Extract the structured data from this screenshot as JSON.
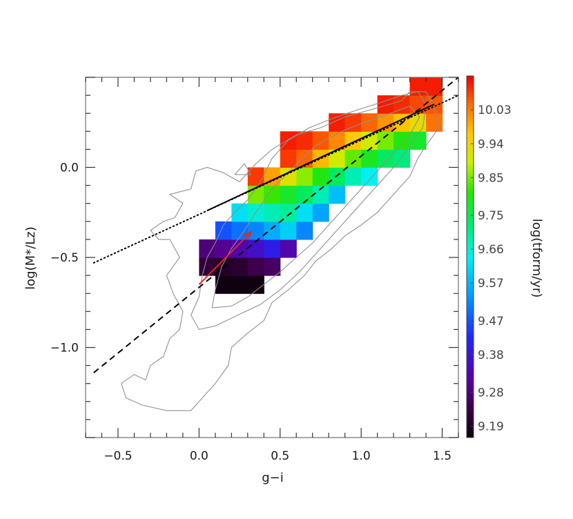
{
  "chart_data": {
    "type": "heatmap",
    "xlabel": "g−i",
    "ylabel": "log(M*/Lz)",
    "colorbar_label": "log(tform/yr)",
    "xlim": [
      -0.7,
      1.6
    ],
    "ylim": [
      -1.5,
      0.5
    ],
    "x_ticks": [
      {
        "value": -0.5,
        "label": "−0.5"
      },
      {
        "value": 0.0,
        "label": "0.0"
      },
      {
        "value": 0.5,
        "label": "0.5"
      },
      {
        "value": 1.0,
        "label": "1.0"
      },
      {
        "value": 1.5,
        "label": "1.5"
      }
    ],
    "y_ticks": [
      {
        "value": 0.0,
        "label": "0.0"
      },
      {
        "value": -0.5,
        "label": "−0.5"
      },
      {
        "value": -1.0,
        "label": "−1.0"
      }
    ],
    "colorbar": {
      "min": 9.16,
      "max": 10.12,
      "tick_values": [
        10.03,
        9.94,
        9.85,
        9.75,
        9.66,
        9.57,
        9.47,
        9.38,
        9.28,
        9.19
      ],
      "tick_labels": [
        "10.03",
        "9.94",
        "9.85",
        "9.75",
        "9.66",
        "9.57",
        "9.47",
        "9.38",
        "9.28",
        "9.19"
      ]
    },
    "grid": false,
    "legend": "none",
    "bin_size": {
      "x": 0.1,
      "y": 0.1
    },
    "bins": [
      {
        "x": 0.1,
        "y": -0.7,
        "v": 9.17
      },
      {
        "x": 0.2,
        "y": -0.7,
        "v": 9.17
      },
      {
        "x": 0.3,
        "y": -0.7,
        "v": 9.17
      },
      {
        "x": 0.0,
        "y": -0.6,
        "v": 9.22
      },
      {
        "x": 0.1,
        "y": -0.6,
        "v": 9.2
      },
      {
        "x": 0.2,
        "y": -0.6,
        "v": 9.21
      },
      {
        "x": 0.3,
        "y": -0.6,
        "v": 9.24
      },
      {
        "x": 0.4,
        "y": -0.6,
        "v": 9.26
      },
      {
        "x": 0.0,
        "y": -0.5,
        "v": 9.28
      },
      {
        "x": 0.1,
        "y": -0.5,
        "v": 9.3
      },
      {
        "x": 0.2,
        "y": -0.5,
        "v": 9.33
      },
      {
        "x": 0.3,
        "y": -0.5,
        "v": 9.36
      },
      {
        "x": 0.4,
        "y": -0.5,
        "v": 9.4
      },
      {
        "x": 0.5,
        "y": -0.5,
        "v": 9.33
      },
      {
        "x": 0.1,
        "y": -0.4,
        "v": 9.47
      },
      {
        "x": 0.2,
        "y": -0.4,
        "v": 9.5
      },
      {
        "x": 0.3,
        "y": -0.4,
        "v": 9.52
      },
      {
        "x": 0.4,
        "y": -0.4,
        "v": 9.56
      },
      {
        "x": 0.5,
        "y": -0.4,
        "v": 9.6
      },
      {
        "x": 0.6,
        "y": -0.4,
        "v": 9.52
      },
      {
        "x": 0.2,
        "y": -0.3,
        "v": 9.62
      },
      {
        "x": 0.3,
        "y": -0.3,
        "v": 9.66
      },
      {
        "x": 0.4,
        "y": -0.3,
        "v": 9.68
      },
      {
        "x": 0.5,
        "y": -0.3,
        "v": 9.7
      },
      {
        "x": 0.6,
        "y": -0.3,
        "v": 9.62
      },
      {
        "x": 0.7,
        "y": -0.3,
        "v": 9.55
      },
      {
        "x": 0.3,
        "y": -0.2,
        "v": 9.85
      },
      {
        "x": 0.4,
        "y": -0.2,
        "v": 9.82
      },
      {
        "x": 0.5,
        "y": -0.2,
        "v": 9.78
      },
      {
        "x": 0.6,
        "y": -0.2,
        "v": 9.74
      },
      {
        "x": 0.7,
        "y": -0.2,
        "v": 9.68
      },
      {
        "x": 0.8,
        "y": -0.2,
        "v": 9.58
      },
      {
        "x": 0.3,
        "y": -0.1,
        "v": 10.08
      },
      {
        "x": 0.4,
        "y": -0.1,
        "v": 10.0
      },
      {
        "x": 0.5,
        "y": -0.1,
        "v": 9.92
      },
      {
        "x": 0.6,
        "y": -0.1,
        "v": 9.86
      },
      {
        "x": 0.7,
        "y": -0.1,
        "v": 9.8
      },
      {
        "x": 0.8,
        "y": -0.1,
        "v": 9.74
      },
      {
        "x": 0.9,
        "y": -0.1,
        "v": 9.68
      },
      {
        "x": 1.0,
        "y": -0.1,
        "v": 9.64
      },
      {
        "x": 0.5,
        "y": 0.0,
        "v": 10.08
      },
      {
        "x": 0.6,
        "y": 0.0,
        "v": 10.05
      },
      {
        "x": 0.7,
        "y": 0.0,
        "v": 9.98
      },
      {
        "x": 0.8,
        "y": 0.0,
        "v": 9.9
      },
      {
        "x": 0.9,
        "y": 0.0,
        "v": 9.84
      },
      {
        "x": 1.0,
        "y": 0.0,
        "v": 9.79
      },
      {
        "x": 1.1,
        "y": 0.0,
        "v": 9.74
      },
      {
        "x": 1.2,
        "y": 0.0,
        "v": 9.72
      },
      {
        "x": 0.5,
        "y": 0.1,
        "v": 10.1
      },
      {
        "x": 0.6,
        "y": 0.1,
        "v": 10.09
      },
      {
        "x": 0.7,
        "y": 0.1,
        "v": 10.06
      },
      {
        "x": 0.8,
        "y": 0.1,
        "v": 10.02
      },
      {
        "x": 0.9,
        "y": 0.1,
        "v": 9.96
      },
      {
        "x": 1.0,
        "y": 0.1,
        "v": 9.9
      },
      {
        "x": 1.1,
        "y": 0.1,
        "v": 9.85
      },
      {
        "x": 1.2,
        "y": 0.1,
        "v": 9.8
      },
      {
        "x": 1.3,
        "y": 0.1,
        "v": 9.78
      },
      {
        "x": 0.8,
        "y": 0.2,
        "v": 10.1
      },
      {
        "x": 0.9,
        "y": 0.2,
        "v": 10.08
      },
      {
        "x": 1.0,
        "y": 0.2,
        "v": 10.05
      },
      {
        "x": 1.1,
        "y": 0.2,
        "v": 10.01
      },
      {
        "x": 1.2,
        "y": 0.2,
        "v": 9.97
      },
      {
        "x": 1.3,
        "y": 0.2,
        "v": 9.93
      },
      {
        "x": 1.4,
        "y": 0.2,
        "v": 10.04
      },
      {
        "x": 1.1,
        "y": 0.3,
        "v": 10.1
      },
      {
        "x": 1.2,
        "y": 0.3,
        "v": 10.09
      },
      {
        "x": 1.3,
        "y": 0.3,
        "v": 10.07
      },
      {
        "x": 1.4,
        "y": 0.3,
        "v": 10.06
      },
      {
        "x": 1.3,
        "y": 0.4,
        "v": 10.1
      },
      {
        "x": 1.4,
        "y": 0.4,
        "v": 10.1
      }
    ],
    "lines": [
      {
        "style": "solid",
        "color": "#000000",
        "x": [
          0.05,
          1.45
        ],
        "y": [
          -0.24,
          0.35
        ]
      },
      {
        "style": "dotted",
        "color": "#000000",
        "x": [
          -0.65,
          1.6
        ],
        "y": [
          -0.53,
          0.4
        ]
      },
      {
        "style": "dashed",
        "color": "#000000",
        "x": [
          -0.65,
          1.6
        ],
        "y": [
          -1.14,
          0.5
        ]
      }
    ],
    "arrow": {
      "color": "#e8261a",
      "from": [
        0.0,
        -0.65
      ],
      "to": [
        0.32,
        -0.36
      ]
    },
    "contours": [
      [
        [
          -0.48,
          -1.2
        ],
        [
          -0.4,
          -1.15
        ],
        [
          -0.33,
          -1.18
        ],
        [
          -0.3,
          -1.1
        ],
        [
          -0.22,
          -1.05
        ],
        [
          -0.18,
          -0.95
        ],
        [
          -0.12,
          -0.9
        ],
        [
          -0.1,
          -0.8
        ],
        [
          -0.16,
          -0.7
        ],
        [
          -0.2,
          -0.6
        ],
        [
          -0.12,
          -0.5
        ],
        [
          -0.18,
          -0.4
        ],
        [
          -0.25,
          -0.4
        ],
        [
          -0.3,
          -0.35
        ],
        [
          -0.22,
          -0.3
        ],
        [
          -0.15,
          -0.28
        ],
        [
          -0.1,
          -0.2
        ],
        [
          -0.18,
          -0.15
        ],
        [
          -0.05,
          -0.12
        ],
        [
          -0.02,
          -0.02
        ],
        [
          0.05,
          0.0
        ],
        [
          0.15,
          -0.03
        ],
        [
          0.25,
          -0.08
        ],
        [
          0.35,
          0.02
        ],
        [
          0.45,
          0.1
        ],
        [
          0.6,
          0.18
        ],
        [
          0.75,
          0.22
        ],
        [
          0.9,
          0.28
        ],
        [
          1.1,
          0.33
        ],
        [
          1.25,
          0.37
        ],
        [
          1.3,
          0.42
        ],
        [
          1.4,
          0.42
        ],
        [
          1.45,
          0.33
        ],
        [
          1.48,
          0.22
        ],
        [
          1.4,
          0.12
        ],
        [
          1.35,
          0.05
        ],
        [
          1.3,
          -0.05
        ],
        [
          1.2,
          -0.15
        ],
        [
          1.1,
          -0.25
        ],
        [
          1.0,
          -0.32
        ],
        [
          0.9,
          -0.38
        ],
        [
          0.82,
          -0.45
        ],
        [
          0.72,
          -0.52
        ],
        [
          0.65,
          -0.6
        ],
        [
          0.55,
          -0.68
        ],
        [
          0.45,
          -0.75
        ],
        [
          0.4,
          -0.85
        ],
        [
          0.3,
          -0.92
        ],
        [
          0.2,
          -1.0
        ],
        [
          0.18,
          -1.1
        ],
        [
          0.1,
          -1.2
        ],
        [
          0.02,
          -1.28
        ],
        [
          -0.05,
          -1.35
        ],
        [
          -0.2,
          -1.35
        ],
        [
          -0.35,
          -1.32
        ],
        [
          -0.45,
          -1.28
        ],
        [
          -0.48,
          -1.2
        ]
      ],
      [
        [
          -0.05,
          -0.82
        ],
        [
          0.0,
          -0.72
        ],
        [
          0.02,
          -0.6
        ],
        [
          0.05,
          -0.5
        ],
        [
          0.1,
          -0.42
        ],
        [
          0.15,
          -0.32
        ],
        [
          0.22,
          -0.25
        ],
        [
          0.3,
          -0.18
        ],
        [
          0.38,
          -0.08
        ],
        [
          0.45,
          0.05
        ],
        [
          0.55,
          0.15
        ],
        [
          0.68,
          0.22
        ],
        [
          0.82,
          0.27
        ],
        [
          0.98,
          0.32
        ],
        [
          1.12,
          0.36
        ],
        [
          1.25,
          0.4
        ],
        [
          1.35,
          0.42
        ],
        [
          1.4,
          0.35
        ],
        [
          1.38,
          0.22
        ],
        [
          1.3,
          0.12
        ],
        [
          1.22,
          0.02
        ],
        [
          1.12,
          -0.08
        ],
        [
          1.02,
          -0.18
        ],
        [
          0.92,
          -0.28
        ],
        [
          0.82,
          -0.38
        ],
        [
          0.72,
          -0.48
        ],
        [
          0.62,
          -0.58
        ],
        [
          0.5,
          -0.68
        ],
        [
          0.38,
          -0.76
        ],
        [
          0.24,
          -0.82
        ],
        [
          0.1,
          -0.88
        ],
        [
          0.0,
          -0.9
        ],
        [
          -0.05,
          -0.82
        ]
      ],
      [
        [
          0.08,
          -0.78
        ],
        [
          0.1,
          -0.68
        ],
        [
          0.14,
          -0.55
        ],
        [
          0.2,
          -0.45
        ],
        [
          0.28,
          -0.35
        ],
        [
          0.35,
          -0.25
        ],
        [
          0.45,
          -0.12
        ],
        [
          0.58,
          0.0
        ],
        [
          0.72,
          0.12
        ],
        [
          0.88,
          0.2
        ],
        [
          1.02,
          0.25
        ],
        [
          1.18,
          0.3
        ],
        [
          1.3,
          0.34
        ],
        [
          1.36,
          0.28
        ],
        [
          1.3,
          0.18
        ],
        [
          1.2,
          0.08
        ],
        [
          1.1,
          -0.02
        ],
        [
          1.0,
          -0.12
        ],
        [
          0.9,
          -0.22
        ],
        [
          0.8,
          -0.32
        ],
        [
          0.7,
          -0.42
        ],
        [
          0.6,
          -0.5
        ],
        [
          0.5,
          -0.58
        ],
        [
          0.4,
          -0.65
        ],
        [
          0.3,
          -0.72
        ],
        [
          0.2,
          -0.77
        ],
        [
          0.08,
          -0.78
        ]
      ],
      [
        [
          0.22,
          -0.04
        ],
        [
          0.32,
          -0.04
        ],
        [
          0.28,
          0.02
        ],
        [
          0.22,
          -0.04
        ]
      ]
    ]
  }
}
